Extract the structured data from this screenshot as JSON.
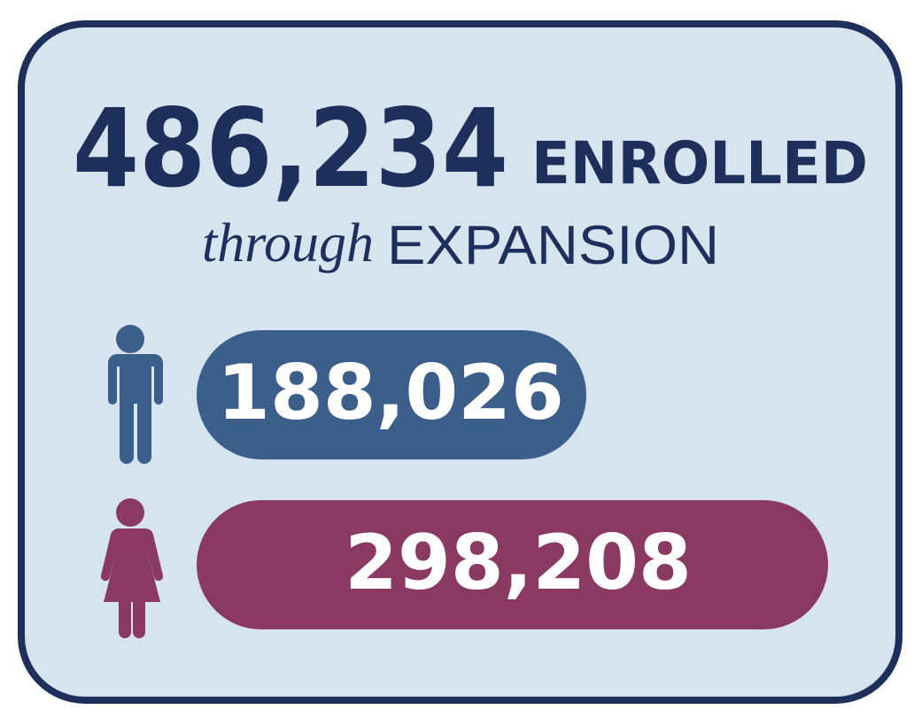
{
  "headline": {
    "total": "486,234",
    "enrolled": "ENROLLED",
    "through": "through",
    "expansion": "EXPANSION"
  },
  "groups": [
    {
      "value": "188,026"
    },
    {
      "value": "298,208"
    }
  ]
}
